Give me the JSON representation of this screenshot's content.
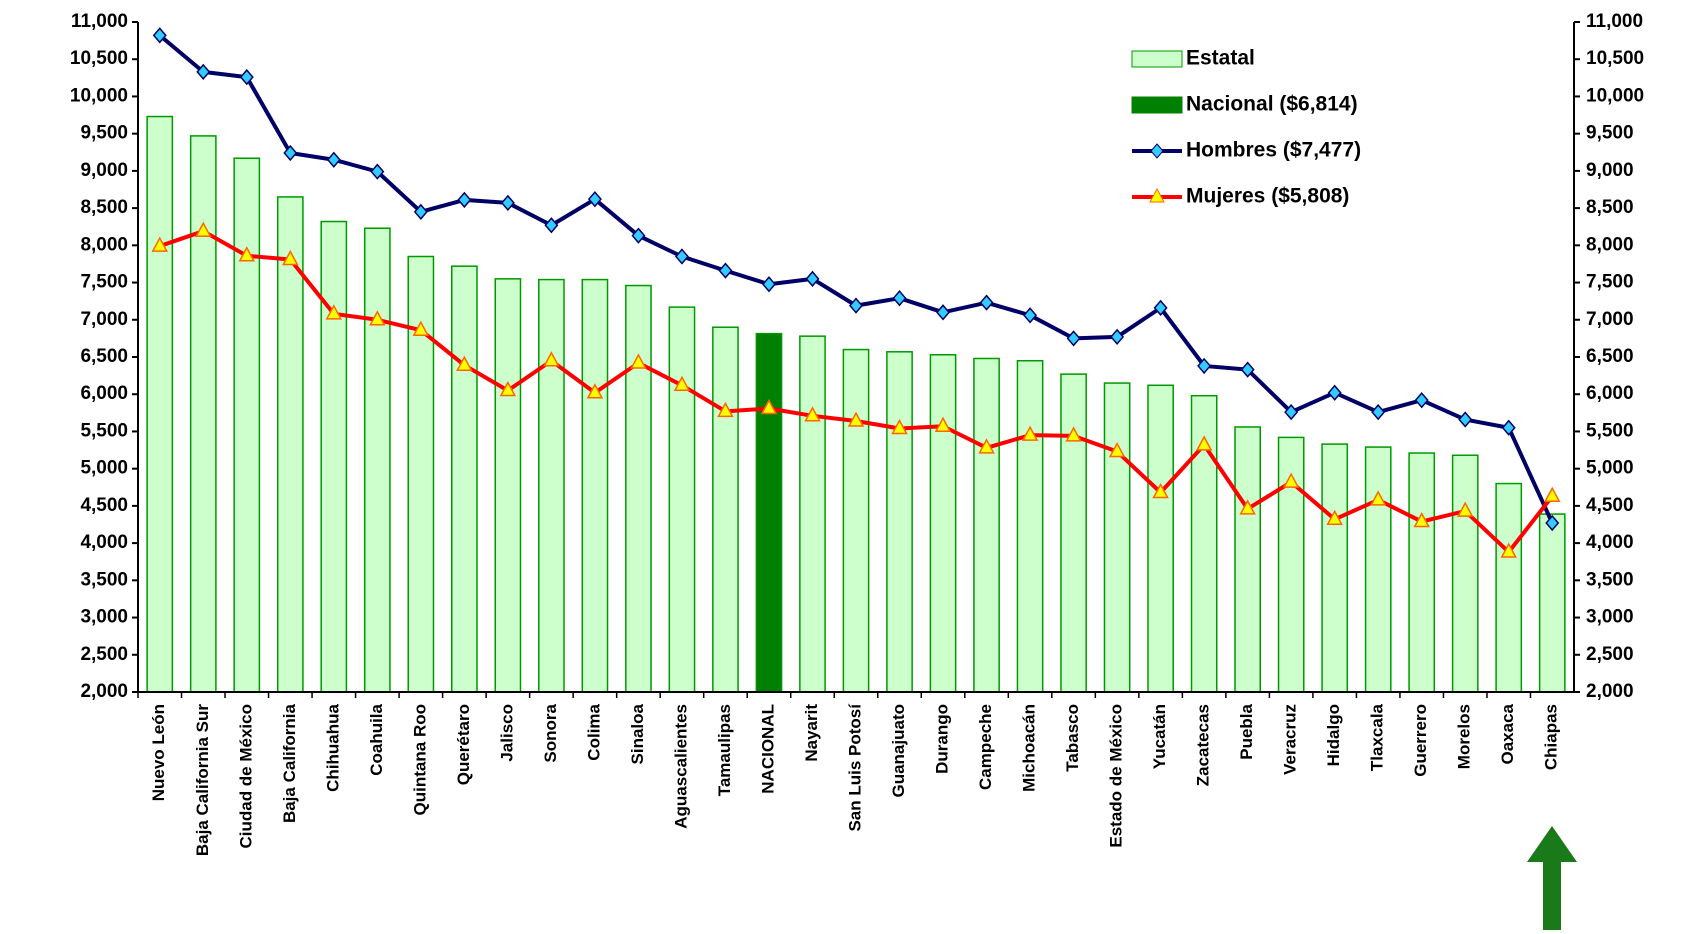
{
  "chart_data": {
    "type": "bar",
    "categories": [
      "Nuevo León",
      "Baja California Sur",
      "Ciudad de México",
      "Baja California",
      "Chihuahua",
      "Coahuila",
      "Quintana Roo",
      "Querétaro",
      "Jalisco",
      "Sonora",
      "Colima",
      "Sinaloa",
      "Aguascalientes",
      "Tamaulipas",
      "NACIONAL",
      "Nayarit",
      "San Luis Potosí",
      "Guanajuato",
      "Durango",
      "Campeche",
      "Michoacán",
      "Tabasco",
      "Estado de México",
      "Yucatán",
      "Zacatecas",
      "Puebla",
      "Veracruz",
      "Hidalgo",
      "Tlaxcala",
      "Guerrero",
      "Morelos",
      "Oaxaca",
      "Chiapas"
    ],
    "series": [
      {
        "name": "Estatal",
        "type": "bar",
        "color": "#ccffcc",
        "values": [
          9730,
          9470,
          9170,
          8650,
          8320,
          8230,
          7850,
          7720,
          7550,
          7540,
          7540,
          7460,
          7170,
          6900,
          null,
          6780,
          6600,
          6570,
          6530,
          6480,
          6450,
          6270,
          6150,
          6120,
          5980,
          5560,
          5420,
          5330,
          5290,
          5210,
          5180,
          4800,
          4390
        ]
      },
      {
        "name": "Nacional ($6,814)",
        "type": "bar",
        "color": "#008000",
        "values": [
          null,
          null,
          null,
          null,
          null,
          null,
          null,
          null,
          null,
          null,
          null,
          null,
          null,
          null,
          6814,
          null,
          null,
          null,
          null,
          null,
          null,
          null,
          null,
          null,
          null,
          null,
          null,
          null,
          null,
          null,
          null,
          null,
          null
        ]
      },
      {
        "name": "Hombres ($7,477)",
        "type": "line",
        "color": "#000066",
        "marker_color": "#33ccff",
        "values": [
          10820,
          10330,
          10260,
          9240,
          9150,
          8990,
          8450,
          8610,
          8570,
          8270,
          8620,
          8130,
          7850,
          7660,
          7477,
          7550,
          7190,
          7290,
          7100,
          7230,
          7060,
          6750,
          6770,
          7160,
          6380,
          6330,
          5760,
          6020,
          5760,
          5920,
          5660,
          5550,
          4270
        ]
      },
      {
        "name": "Mujeres ($5,808)",
        "type": "line",
        "color": "#ff0000",
        "marker_color": "#ffff00",
        "values": [
          7990,
          8190,
          7860,
          7810,
          7080,
          7000,
          6860,
          6390,
          6050,
          6450,
          6020,
          6420,
          6120,
          5770,
          5808,
          5710,
          5640,
          5540,
          5570,
          5280,
          5450,
          5440,
          5230,
          4680,
          5320,
          4460,
          4820,
          4320,
          4580,
          4290,
          4430,
          3880,
          4630
        ]
      }
    ],
    "ylim": [
      2000,
      11000
    ],
    "yticks": [
      {
        "value": 2000,
        "label": "2,000"
      },
      {
        "value": 2500,
        "label": "2,500"
      },
      {
        "value": 3000,
        "label": "3,000"
      },
      {
        "value": 3500,
        "label": "3,500"
      },
      {
        "value": 4000,
        "label": "4,000"
      },
      {
        "value": 4500,
        "label": "4,500"
      },
      {
        "value": 5000,
        "label": "5,000"
      },
      {
        "value": 5500,
        "label": "5,500"
      },
      {
        "value": 6000,
        "label": "6,000"
      },
      {
        "value": 6500,
        "label": "6,500"
      },
      {
        "value": 7000,
        "label": "7,000"
      },
      {
        "value": 7500,
        "label": "7,500"
      },
      {
        "value": 8000,
        "label": "8,000"
      },
      {
        "value": 8500,
        "label": "8,500"
      },
      {
        "value": 9000,
        "label": "9,000"
      },
      {
        "value": 9500,
        "label": "9,500"
      },
      {
        "value": 10000,
        "label": "10,000"
      },
      {
        "value": 10500,
        "label": "10,500"
      },
      {
        "value": 11000,
        "label": "11,000"
      }
    ],
    "y2lim": [
      2000,
      11000
    ],
    "y2ticks": [
      {
        "value": 2000,
        "label": "2,000"
      },
      {
        "value": 2500,
        "label": "2,500"
      },
      {
        "value": 3000,
        "label": "3,000"
      },
      {
        "value": 3500,
        "label": "3,500"
      },
      {
        "value": 4000,
        "label": "4,000"
      },
      {
        "value": 4500,
        "label": "4,500"
      },
      {
        "value": 5000,
        "label": "5,000"
      },
      {
        "value": 5500,
        "label": "5,500"
      },
      {
        "value": 6000,
        "label": "6,000"
      },
      {
        "value": 6500,
        "label": "6,500"
      },
      {
        "value": 7000,
        "label": "7,000"
      },
      {
        "value": 7500,
        "label": "7,500"
      },
      {
        "value": 8000,
        "label": "8,000"
      },
      {
        "value": 8500,
        "label": "8,500"
      },
      {
        "value": 9000,
        "label": "9,000"
      },
      {
        "value": 9500,
        "label": "9,500"
      },
      {
        "value": 10000,
        "label": "10,000"
      },
      {
        "value": 10500,
        "label": "10,500"
      },
      {
        "value": 11000,
        "label": "11,000"
      }
    ],
    "legend": "upper right"
  }
}
